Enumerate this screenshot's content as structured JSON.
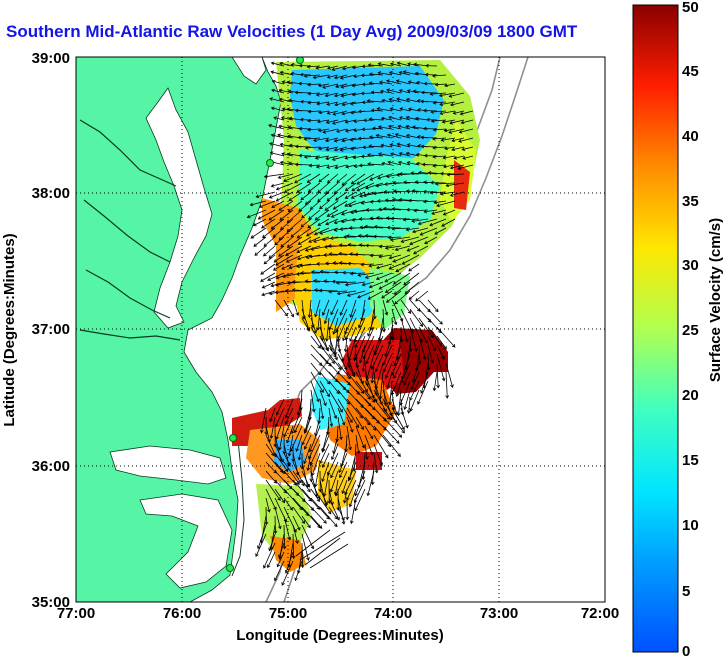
{
  "title": "Southern Mid-Atlantic Raw Velocities (1 Day Avg) 2009/03/09 1800 GMT",
  "map": {
    "xlabel": "Longitude (Degrees:Minutes)",
    "ylabel": "Latitude (Degrees:Minutes)",
    "lon_range": [
      -77,
      -72
    ],
    "lat_range": [
      35,
      39
    ],
    "x_ticks": [
      "77:00",
      "76:00",
      "75:00",
      "74:00",
      "73:00",
      "72:00"
    ],
    "y_ticks": [
      "35:00",
      "36:00",
      "37:00",
      "38:00",
      "39:00"
    ],
    "land_color": "#55f5a5",
    "water_color": "#ffffff",
    "grid": "dotted"
  },
  "colorbar": {
    "label": "Surface Velocity (cm/s)",
    "min": 0,
    "max": 50,
    "ticks": [
      "0",
      "5",
      "10",
      "15",
      "20",
      "25",
      "30",
      "35",
      "40",
      "45",
      "50"
    ],
    "colormap": "jet"
  }
}
